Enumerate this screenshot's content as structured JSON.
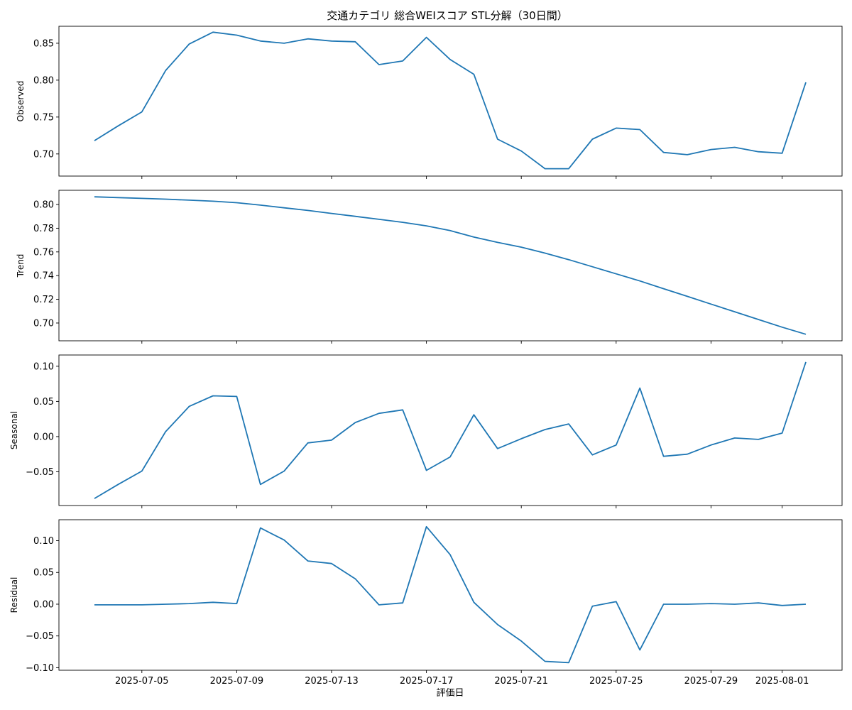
{
  "chart_data": {
    "type": "line",
    "title": "交通カテゴリ 総合WEIスコア STL分解（30日間）",
    "xlabel": "評価日",
    "line_color": "#1f77b4",
    "dates": [
      "2025-07-03",
      "2025-07-04",
      "2025-07-05",
      "2025-07-06",
      "2025-07-07",
      "2025-07-08",
      "2025-07-09",
      "2025-07-10",
      "2025-07-11",
      "2025-07-12",
      "2025-07-13",
      "2025-07-14",
      "2025-07-15",
      "2025-07-16",
      "2025-07-17",
      "2025-07-18",
      "2025-07-19",
      "2025-07-20",
      "2025-07-21",
      "2025-07-22",
      "2025-07-23",
      "2025-07-24",
      "2025-07-25",
      "2025-07-26",
      "2025-07-27",
      "2025-07-28",
      "2025-07-29",
      "2025-07-30",
      "2025-07-31",
      "2025-08-01",
      "2025-08-02"
    ],
    "x_ticks": [
      "2025-07-05",
      "2025-07-09",
      "2025-07-13",
      "2025-07-17",
      "2025-07-21",
      "2025-07-25",
      "2025-07-29",
      "2025-08-01"
    ],
    "panels": [
      {
        "ylabel": "Observed",
        "ylim": [
          0.67,
          0.873
        ],
        "yticks": [
          "0.70",
          "0.75",
          "0.80",
          "0.85"
        ],
        "values": [
          0.718,
          0.738,
          0.757,
          0.813,
          0.849,
          0.865,
          0.861,
          0.853,
          0.85,
          0.856,
          0.853,
          0.852,
          0.821,
          0.826,
          0.858,
          0.828,
          0.808,
          0.72,
          0.704,
          0.68,
          0.68,
          0.72,
          0.735,
          0.733,
          0.702,
          0.699,
          0.706,
          0.709,
          0.703,
          0.701,
          0.797
        ]
      },
      {
        "ylabel": "Trend",
        "ylim": [
          0.685,
          0.812
        ],
        "yticks": [
          "0.70",
          "0.72",
          "0.74",
          "0.76",
          "0.78",
          "0.80"
        ],
        "values": [
          0.8065,
          0.8058,
          0.8052,
          0.8045,
          0.8037,
          0.8028,
          0.8015,
          0.7995,
          0.7972,
          0.795,
          0.7925,
          0.79,
          0.7875,
          0.785,
          0.782,
          0.778,
          0.7725,
          0.768,
          0.764,
          0.759,
          0.7535,
          0.7475,
          0.7415,
          0.7355,
          0.729,
          0.7225,
          0.716,
          0.7095,
          0.703,
          0.6965,
          0.6905
        ]
      },
      {
        "ylabel": "Seasonal",
        "ylim": [
          -0.098,
          0.116
        ],
        "yticks": [
          "−0.05",
          "0.00",
          "0.05",
          "0.10"
        ],
        "values": [
          -0.088,
          -0.068,
          -0.049,
          0.007,
          0.043,
          0.058,
          0.057,
          -0.068,
          -0.049,
          -0.009,
          -0.005,
          0.02,
          0.033,
          0.038,
          -0.048,
          -0.029,
          0.031,
          -0.017,
          -0.003,
          0.01,
          0.018,
          -0.026,
          -0.012,
          0.069,
          -0.028,
          -0.025,
          -0.012,
          -0.002,
          -0.004,
          0.005,
          0.106
        ]
      },
      {
        "ylabel": "Residual",
        "ylim": [
          -0.104,
          0.133
        ],
        "yticks": [
          "−0.10",
          "−0.05",
          "0.00",
          "0.05",
          "0.10"
        ],
        "values": [
          -0.001,
          -0.001,
          -0.001,
          0.0,
          0.001,
          0.003,
          0.001,
          0.12,
          0.101,
          0.068,
          0.064,
          0.04,
          -0.001,
          0.002,
          0.122,
          0.078,
          0.003,
          -0.032,
          -0.058,
          -0.09,
          -0.092,
          -0.003,
          0.004,
          -0.072,
          0.0,
          0.0,
          0.001,
          0.0,
          0.002,
          -0.002,
          0.0
        ]
      }
    ]
  }
}
